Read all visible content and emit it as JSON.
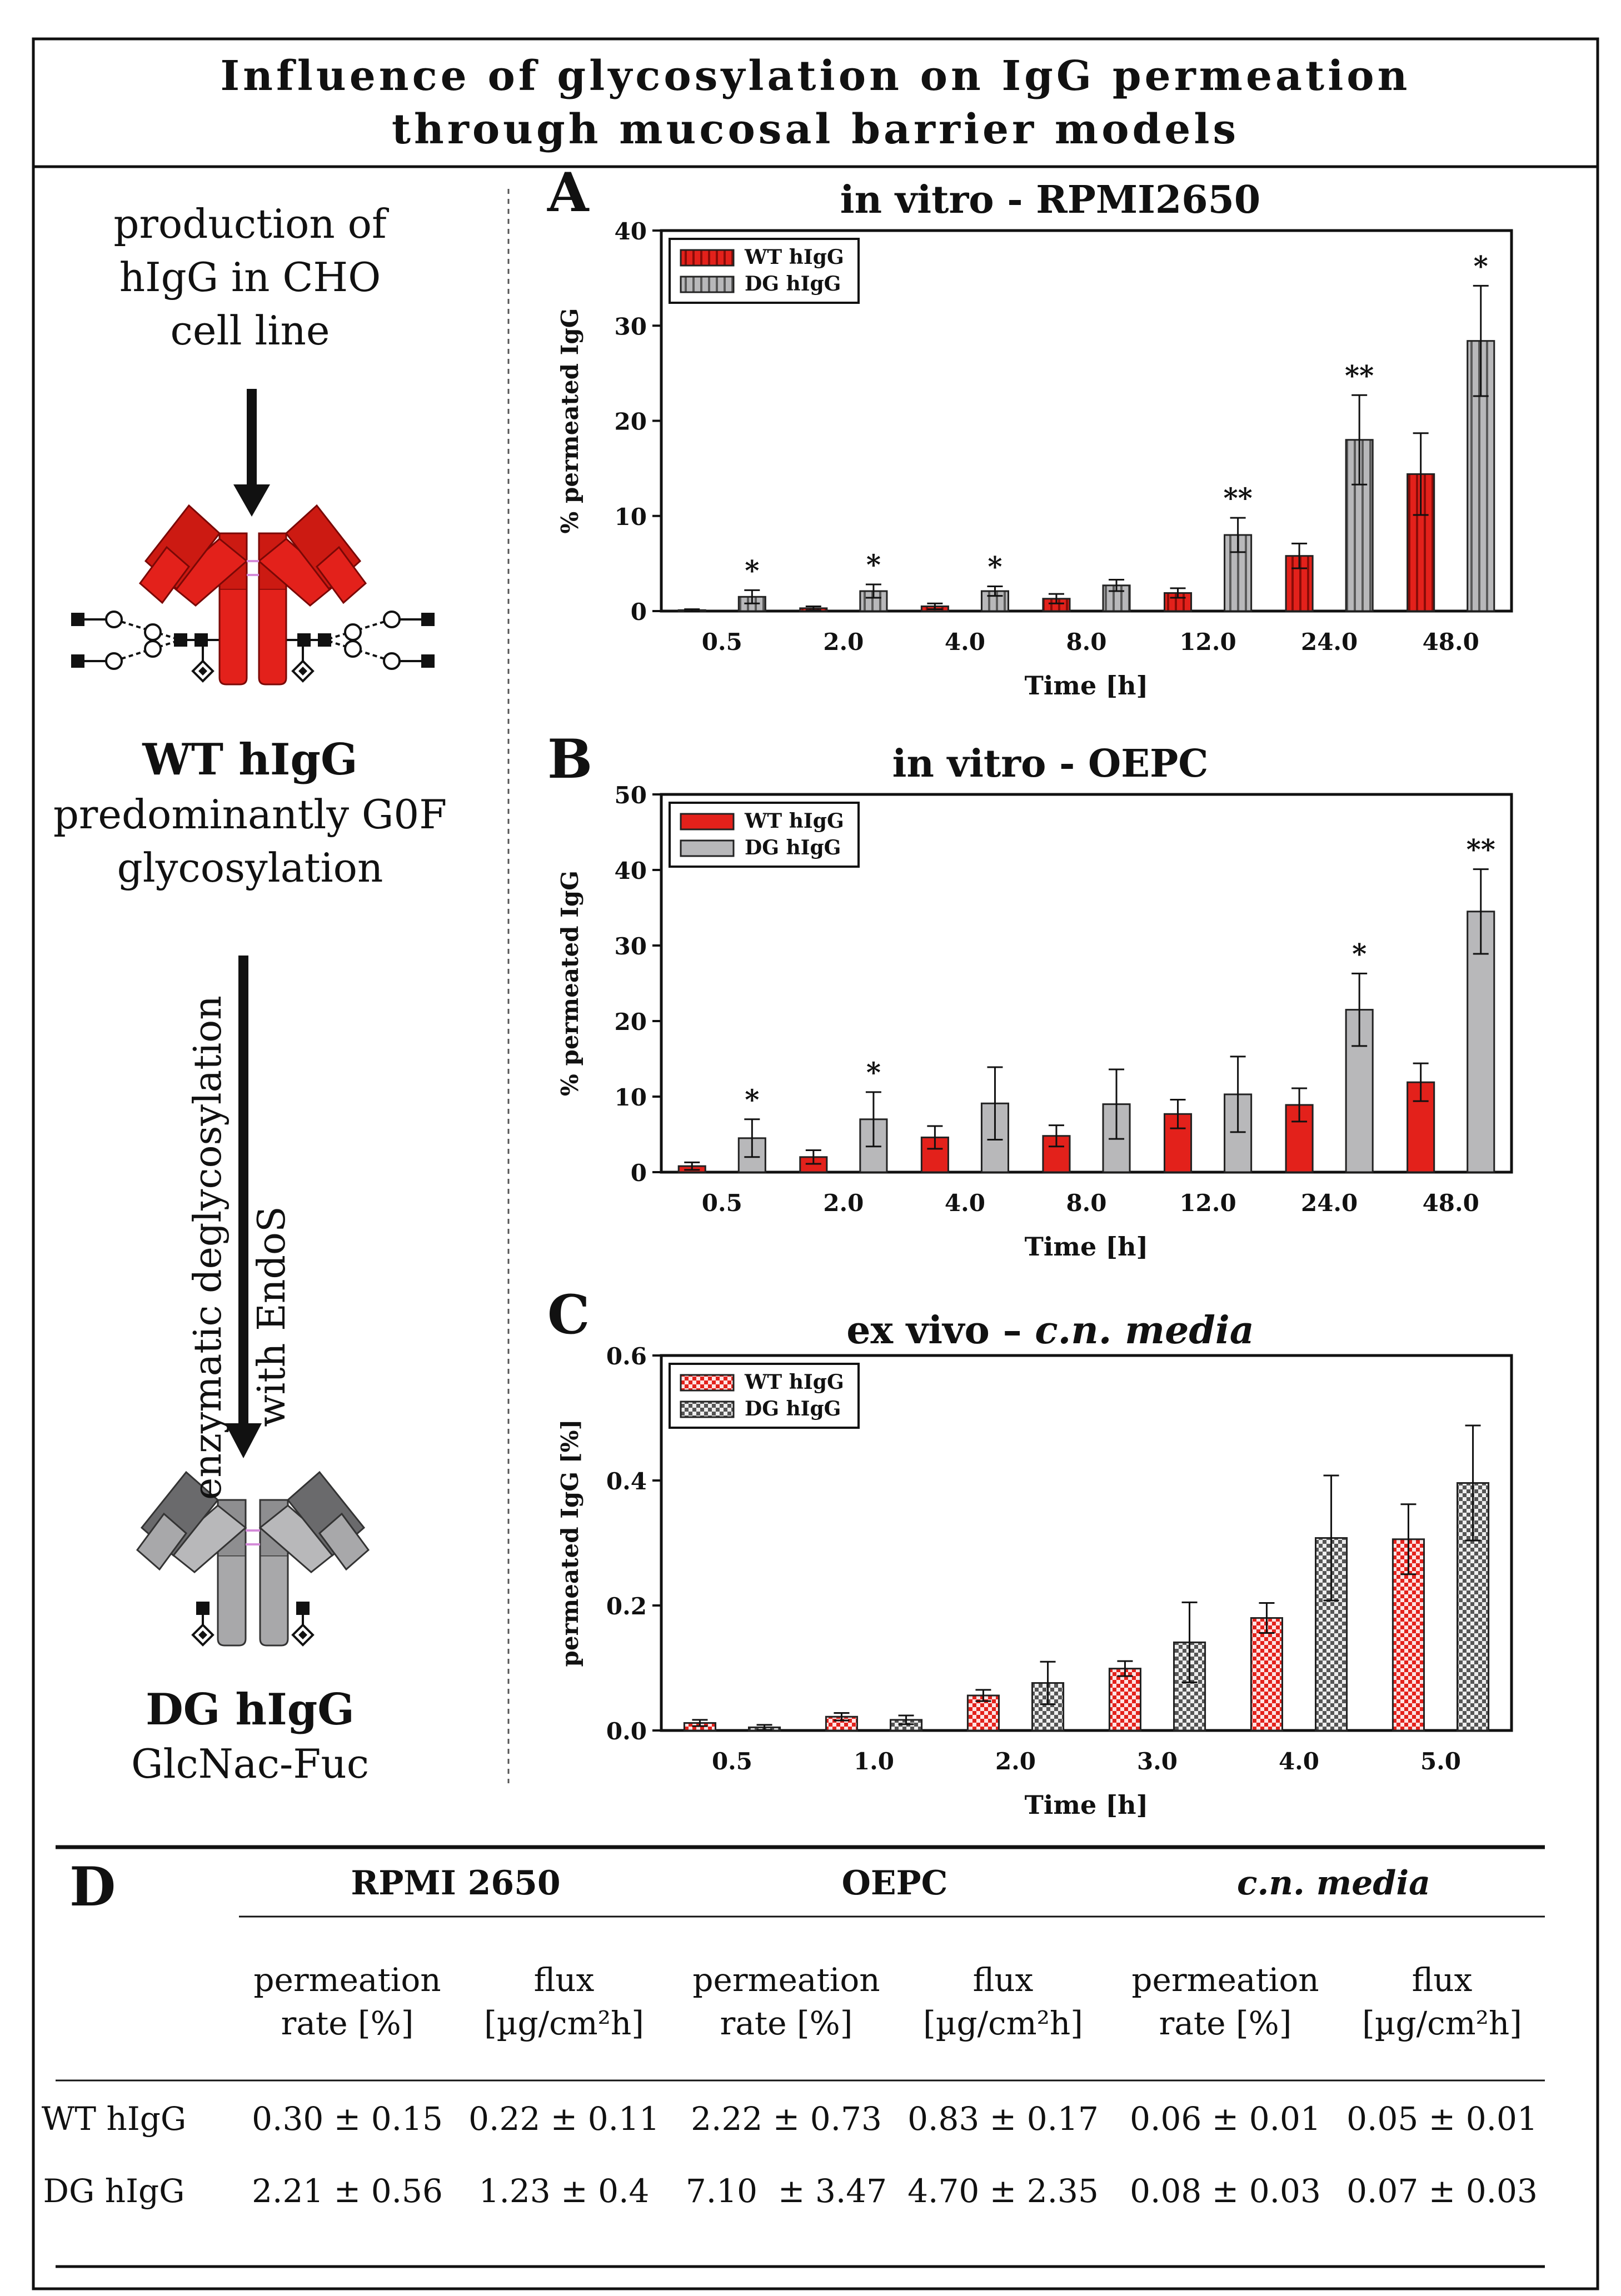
{
  "title": {
    "line1": "Influence of glycosylation on IgG permeation",
    "line2": "through mucosal barrier models"
  },
  "left_panel": {
    "production_lines": [
      "production of",
      "hIgG in CHO",
      "cell line"
    ],
    "wt_name": "WT hIgG",
    "wt_desc_lines": [
      "predominantly G0F",
      "glycosylation"
    ],
    "deglyco_text": "enzymatic deglycosylation",
    "endos_text": "with EndoS",
    "dg_name": "DG hIgG",
    "dg_desc": "GlcNac-Fuc"
  },
  "colors": {
    "wt": "#e3211b",
    "wt_dark": "#cc1a12",
    "dg": "#b8b8ba",
    "dg_dark": "#9a9a9c",
    "wt_pattern": "#f28b8b",
    "line": "#111111",
    "glyco": "#1a1a1a"
  },
  "chart_data": [
    {
      "panel": "A",
      "type": "bar",
      "title": "in vitro - RPMI2650",
      "xlabel": "Time [h]",
      "ylabel": "% permeated IgG",
      "categories": [
        "0.5",
        "2.0",
        "4.0",
        "8.0",
        "12.0",
        "24.0",
        "48.0"
      ],
      "ylim": [
        0,
        40
      ],
      "yticks": [
        "0",
        "10",
        "20",
        "30",
        "40"
      ],
      "fill": "striped",
      "legend": "top-left",
      "series": [
        {
          "name": "WT hIgG",
          "values": [
            0.1,
            0.3,
            0.5,
            1.3,
            1.9,
            5.8,
            14.4
          ],
          "errors": [
            0.1,
            0.2,
            0.3,
            0.5,
            0.5,
            1.3,
            4.3
          ]
        },
        {
          "name": "DG hIgG",
          "values": [
            1.5,
            2.1,
            2.1,
            2.7,
            8.0,
            18.0,
            28.4
          ],
          "errors": [
            0.7,
            0.7,
            0.5,
            0.6,
            1.8,
            4.7,
            5.8
          ]
        }
      ],
      "significance": [
        "*",
        "*",
        "*",
        "",
        "**",
        "**",
        "*"
      ]
    },
    {
      "panel": "B",
      "type": "bar",
      "title": "in vitro - OEPC",
      "xlabel": "Time [h]",
      "ylabel": "% permeated IgG",
      "categories": [
        "0.5",
        "2.0",
        "4.0",
        "8.0",
        "12.0",
        "24.0",
        "48.0"
      ],
      "ylim": [
        0,
        50
      ],
      "yticks": [
        "0",
        "10",
        "20",
        "30",
        "40",
        "50"
      ],
      "fill": "solid",
      "legend": "top-left",
      "series": [
        {
          "name": "WT hIgG",
          "values": [
            0.8,
            2.0,
            4.6,
            4.8,
            7.7,
            8.9,
            11.9
          ],
          "errors": [
            0.5,
            0.9,
            1.5,
            1.4,
            1.9,
            2.2,
            2.5
          ]
        },
        {
          "name": "DG hIgG",
          "values": [
            4.5,
            7.0,
            9.1,
            9.0,
            10.3,
            21.5,
            34.5
          ],
          "errors": [
            2.5,
            3.6,
            4.8,
            4.6,
            5.0,
            4.8,
            5.6
          ]
        }
      ],
      "significance": [
        "*",
        "*",
        "",
        "",
        "",
        "*",
        "**"
      ]
    },
    {
      "panel": "C",
      "type": "bar",
      "title": "ex vivo – c.n. media",
      "xlabel": "Time [h]",
      "ylabel": "permeated IgG [%]",
      "categories": [
        "0.5",
        "1.0",
        "2.0",
        "3.0",
        "4.0",
        "5.0"
      ],
      "ylim": [
        0,
        0.6
      ],
      "yticks": [
        "0.0",
        "0.2",
        "0.4",
        "0.6"
      ],
      "fill": "checkered",
      "legend": "top-left",
      "series": [
        {
          "name": "WT hIgG",
          "values": [
            0.012,
            0.022,
            0.056,
            0.099,
            0.18,
            0.306
          ],
          "errors": [
            0.005,
            0.006,
            0.009,
            0.012,
            0.024,
            0.056
          ]
        },
        {
          "name": "DG hIgG",
          "values": [
            0.005,
            0.017,
            0.076,
            0.141,
            0.308,
            0.396
          ],
          "errors": [
            0.004,
            0.007,
            0.034,
            0.064,
            0.1,
            0.092
          ]
        }
      ],
      "significance": [
        "",
        "",
        "",
        "",
        "",
        ""
      ]
    },
    {
      "panel": "D",
      "type": "table",
      "groups": [
        {
          "name": "RPMI 2650",
          "italic": false
        },
        {
          "name": "OEPC",
          "italic": false
        },
        {
          "name": "c.n. media",
          "italic": true
        }
      ],
      "sub_headers": [
        [
          "permeation",
          "rate [%]"
        ],
        [
          "flux",
          "[µg/cm²h]"
        ],
        [
          "permeation",
          "rate [%]"
        ],
        [
          "flux",
          "[µg/cm²h]"
        ],
        [
          "permeation",
          "rate [%]"
        ],
        [
          "flux",
          "[µg/cm²h]"
        ]
      ],
      "rows": [
        {
          "label": "WT hIgG",
          "cells": [
            "0.30 ± 0.15",
            "0.22 ± 0.11",
            "2.22 ± 0.73",
            "0.83 ± 0.17",
            "0.06 ± 0.01",
            "0.05 ± 0.01"
          ]
        },
        {
          "label": "DG hIgG",
          "cells": [
            "2.21 ± 0.56",
            "1.23 ± 0.4",
            "7.10  ± 3.47",
            "4.70 ± 2.35",
            "0.08 ± 0.03",
            "0.07 ± 0.03"
          ]
        }
      ]
    }
  ]
}
